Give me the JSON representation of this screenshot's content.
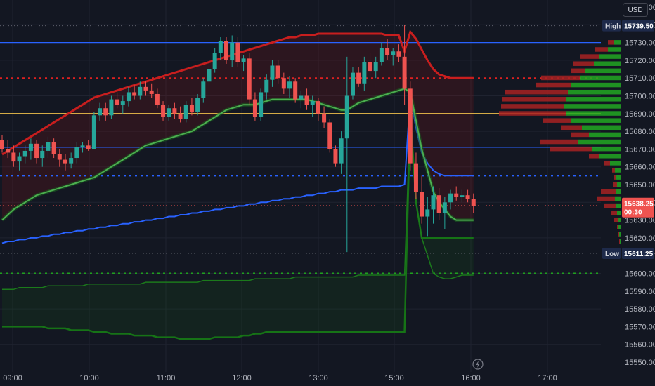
{
  "currency": "USD",
  "price_axis": {
    "ticks": [
      "15750.00",
      "15740.00",
      "15730.00",
      "15720.00",
      "15710.00",
      "15700.00",
      "15690.00",
      "15680.00",
      "15670.00",
      "15660.00",
      "15650.00",
      "15640.00",
      "15630.00",
      "15620.00",
      "15610.00",
      "15600.00",
      "15590.00",
      "15580.00",
      "15570.00",
      "15560.00",
      "15550.00"
    ],
    "high_label": "High",
    "high_value": "15739.50",
    "low_label": "Low",
    "low_value": "15611.25",
    "current_value": "15638.25",
    "countdown": "00:30"
  },
  "time_axis": {
    "ticks": [
      "09:00",
      "10:00",
      "11:00",
      "12:00",
      "13:00",
      "15:00",
      "16:00",
      "17:00"
    ]
  },
  "colors": {
    "background": "#131722",
    "bull": "#26a69a",
    "bear": "#ef5350",
    "upper_band": "#c81e1e",
    "lower_band": "#1b7a1b",
    "vwap": "#2962ff",
    "ma_green": "#4caf50",
    "key_level": "#f0c14b",
    "profile_buy": "#22a822",
    "profile_sell": "#a82222"
  },
  "chart_data": {
    "type": "candlestick",
    "ylim": [
      15545,
      15755
    ],
    "x_ticks": [
      "09:00",
      "10:00",
      "11:00",
      "12:00",
      "13:00",
      "15:00",
      "16:00",
      "17:00"
    ],
    "ohlc": [
      [
        15675,
        15678,
        15668,
        15670
      ],
      [
        15670,
        15675,
        15665,
        15668
      ],
      [
        15668,
        15672,
        15660,
        15663
      ],
      [
        15663,
        15668,
        15658,
        15666
      ],
      [
        15666,
        15672,
        15662,
        15669
      ],
      [
        15669,
        15676,
        15664,
        15673
      ],
      [
        15673,
        15675,
        15662,
        15665
      ],
      [
        15665,
        15672,
        15660,
        15669
      ],
      [
        15669,
        15677,
        15665,
        15674
      ],
      [
        15674,
        15676,
        15665,
        15667
      ],
      [
        15667,
        15670,
        15660,
        15664
      ],
      [
        15664,
        15667,
        15658,
        15662
      ],
      [
        15662,
        15668,
        15659,
        15665
      ],
      [
        15665,
        15674,
        15662,
        15671
      ],
      [
        15671,
        15674,
        15668,
        15672
      ],
      [
        15672,
        15675,
        15669,
        15670
      ],
      [
        15670,
        15691,
        15670,
        15689
      ],
      [
        15689,
        15696,
        15686,
        15693
      ],
      [
        15693,
        15696,
        15686,
        15689
      ],
      [
        15689,
        15700,
        15687,
        15698
      ],
      [
        15698,
        15702,
        15693,
        15695
      ],
      [
        15695,
        15700,
        15690,
        15697
      ],
      [
        15697,
        15705,
        15694,
        15702
      ],
      [
        15702,
        15706,
        15698,
        15700
      ],
      [
        15700,
        15708,
        15698,
        15705
      ],
      [
        15705,
        15708,
        15700,
        15703
      ],
      [
        15703,
        15707,
        15699,
        15701
      ],
      [
        15701,
        15704,
        15693,
        15695
      ],
      [
        15695,
        15697,
        15686,
        15688
      ],
      [
        15688,
        15695,
        15686,
        15693
      ],
      [
        15693,
        15696,
        15687,
        15690
      ],
      [
        15690,
        15694,
        15685,
        15687
      ],
      [
        15687,
        15697,
        15685,
        15695
      ],
      [
        15695,
        15699,
        15689,
        15691
      ],
      [
        15691,
        15701,
        15689,
        15699
      ],
      [
        15699,
        15710,
        15696,
        15708
      ],
      [
        15708,
        15717,
        15705,
        15715
      ],
      [
        15715,
        15727,
        15713,
        15724
      ],
      [
        15724,
        15733,
        15720,
        15731
      ],
      [
        15731,
        15733,
        15718,
        15720
      ],
      [
        15720,
        15734,
        15716,
        15730
      ],
      [
        15730,
        15733,
        15716,
        15719
      ],
      [
        15719,
        15723,
        15714,
        15721
      ],
      [
        15721,
        15724,
        15695,
        15698
      ],
      [
        15698,
        15702,
        15686,
        15688
      ],
      [
        15688,
        15704,
        15686,
        15702
      ],
      [
        15702,
        15712,
        15698,
        15709
      ],
      [
        15709,
        15720,
        15705,
        15717
      ],
      [
        15717,
        15720,
        15707,
        15710
      ],
      [
        15710,
        15713,
        15701,
        15704
      ],
      [
        15704,
        15711,
        15699,
        15708
      ],
      [
        15708,
        15710,
        15696,
        15698
      ],
      [
        15698,
        15703,
        15693,
        15700
      ],
      [
        15700,
        15704,
        15692,
        15695
      ],
      [
        15695,
        15700,
        15688,
        15697
      ],
      [
        15697,
        15699,
        15686,
        15690
      ],
      [
        15690,
        15694,
        15682,
        15685
      ],
      [
        15685,
        15687,
        15668,
        15670
      ],
      [
        15670,
        15672,
        15660,
        15662
      ],
      [
        15662,
        15680,
        15656,
        15676
      ],
      [
        15676,
        15722,
        15612,
        15700
      ],
      [
        15700,
        15716,
        15698,
        15713
      ],
      [
        15713,
        15716,
        15705,
        15707
      ],
      [
        15707,
        15722,
        15703,
        15719
      ],
      [
        15719,
        15724,
        15711,
        15714
      ],
      [
        15714,
        15722,
        15710,
        15719
      ],
      [
        15719,
        15730,
        15717,
        15727
      ],
      [
        15727,
        15732,
        15720,
        15723
      ],
      [
        15723,
        15727,
        15717,
        15725
      ],
      [
        15725,
        15729,
        15719,
        15722
      ],
      [
        15722,
        15740,
        15695,
        15704
      ],
      [
        15704,
        15708,
        15658,
        15662
      ],
      [
        15662,
        15668,
        15642,
        15646
      ],
      [
        15646,
        15655,
        15628,
        15632
      ],
      [
        15632,
        15643,
        15621,
        15636
      ],
      [
        15636,
        15649,
        15628,
        15644
      ],
      [
        15644,
        15648,
        15630,
        15634
      ],
      [
        15634,
        15643,
        15625,
        15640
      ],
      [
        15640,
        15647,
        15636,
        15645
      ],
      [
        15645,
        15649,
        15641,
        15643
      ],
      [
        15643,
        15647,
        15640,
        15644
      ],
      [
        15644,
        15647,
        15640,
        15642
      ],
      [
        15642,
        15645,
        15634,
        15638
      ]
    ],
    "upper_band": [
      15667,
      15669,
      15671,
      15673,
      15675,
      15677,
      15679,
      15681,
      15683,
      15685,
      15687,
      15689,
      15691,
      15693,
      15695,
      15697,
      15699,
      15700,
      15701,
      15702,
      15703,
      15704,
      15705,
      15706,
      15707,
      15708,
      15709,
      15710,
      15711,
      15712,
      15713,
      15714,
      15715,
      15716,
      15717,
      15718,
      15719,
      15720,
      15721,
      15722,
      15723,
      15724,
      15725,
      15726,
      15727,
      15728,
      15729,
      15730,
      15731,
      15732,
      15733,
      15733,
      15734,
      15734,
      15734,
      15735,
      15735,
      15735,
      15735,
      15735,
      15735,
      15735,
      15735,
      15735,
      15735,
      15735,
      15735,
      15734,
      15734,
      15734,
      15725,
      15736,
      15732,
      15726,
      15720,
      15715,
      15712,
      15711,
      15710,
      15710,
      15710,
      15710,
      15710
    ],
    "ma_green": [
      15630,
      15633,
      15636,
      15638,
      15640,
      15642,
      15644,
      15645,
      15646,
      15647,
      15648,
      15649,
      15650,
      15651,
      15652,
      15653,
      15654,
      15656,
      15658,
      15660,
      15662,
      15664,
      15666,
      15668,
      15670,
      15672,
      15673,
      15674,
      15675,
      15676,
      15677,
      15678,
      15679,
      15680,
      15682,
      15684,
      15686,
      15688,
      15690,
      15692,
      15693,
      15694,
      15695,
      15695,
      15695,
      15696,
      15697,
      15698,
      15698,
      15698,
      15698,
      15698,
      15698,
      15698,
      15697,
      15696,
      15695,
      15694,
      15693,
      15692,
      15692,
      15694,
      15696,
      15697,
      15698,
      15699,
      15700,
      15701,
      15702,
      15703,
      15704,
      15702,
      15686,
      15670,
      15658,
      15646,
      15640,
      15636,
      15632,
      15630,
      15630,
      15630,
      15630
    ],
    "vwap": [
      15617,
      15618,
      15618,
      15619,
      15619,
      15620,
      15620,
      15621,
      15621,
      15622,
      15622,
      15623,
      15623,
      15624,
      15624,
      15625,
      15625,
      15626,
      15626,
      15627,
      15627,
      15628,
      15628,
      15629,
      15629,
      15630,
      15630,
      15631,
      15631,
      15632,
      15632,
      15633,
      15633,
      15634,
      15634,
      15635,
      15635,
      15636,
      15636,
      15637,
      15637,
      15638,
      15638,
      15639,
      15639,
      15640,
      15640,
      15641,
      15641,
      15642,
      15642,
      15643,
      15643,
      15644,
      15644,
      15645,
      15645,
      15646,
      15646,
      15647,
      15647,
      15647,
      15648,
      15648,
      15648,
      15648,
      15649,
      15649,
      15649,
      15649,
      15650,
      15700,
      15682,
      15668,
      15662,
      15658,
      15656,
      15655,
      15655,
      15655,
      15655,
      15655,
      15655
    ],
    "lower_band": [
      15591,
      15591,
      15591,
      15592,
      15592,
      15592,
      15592,
      15592,
      15593,
      15593,
      15593,
      15593,
      15593,
      15593,
      15593,
      15594,
      15594,
      15594,
      15594,
      15594,
      15594,
      15594,
      15594,
      15594,
      15594,
      15595,
      15595,
      15595,
      15595,
      15595,
      15595,
      15595,
      15595,
      15595,
      15595,
      15596,
      15596,
      15596,
      15596,
      15596,
      15596,
      15596,
      15596,
      15596,
      15597,
      15597,
      15597,
      15597,
      15597,
      15597,
      15597,
      15598,
      15598,
      15598,
      15598,
      15598,
      15598,
      15598,
      15598,
      15598,
      15598,
      15598,
      15599,
      15599,
      15599,
      15599,
      15599,
      15599,
      15599,
      15599,
      15599,
      15690,
      15640,
      15620,
      15610,
      15600,
      15598,
      15597,
      15597,
      15598,
      15599,
      15599,
      15599
    ],
    "lower_band_outer": [
      15570,
      15570,
      15570,
      15570,
      15570,
      15570,
      15570,
      15570,
      15569,
      15569,
      15569,
      15569,
      15568,
      15568,
      15568,
      15568,
      15567,
      15567,
      15567,
      15566,
      15566,
      15566,
      15566,
      15565,
      15565,
      15565,
      15565,
      15564,
      15564,
      15564,
      15564,
      15563,
      15563,
      15563,
      15563,
      15563,
      15563,
      15564,
      15564,
      15564,
      15564,
      15564,
      15565,
      15565,
      15566,
      15566,
      15567,
      15567,
      15567,
      15567,
      15567,
      15567,
      15567,
      15567,
      15567,
      15567,
      15567,
      15567,
      15567,
      15567,
      15567,
      15567,
      15567,
      15567,
      15567,
      15567,
      15567,
      15567,
      15567,
      15567,
      15567,
      15690,
      15640,
      15620,
      15620,
      15620,
      15620,
      15620,
      15620,
      15620,
      15620,
      15620,
      15620
    ],
    "levels": [
      {
        "price": 15730,
        "style": "solid",
        "color": "#2962ff"
      },
      {
        "price": 15710,
        "style": "dotted",
        "color": "#e02020"
      },
      {
        "price": 15690,
        "style": "solid",
        "color": "#f0c14b"
      },
      {
        "price": 15671,
        "style": "solid",
        "color": "#2962ff"
      },
      {
        "price": 15655,
        "style": "dotted",
        "color": "#2962ff"
      },
      {
        "price": 15600,
        "style": "dotted",
        "color": "#1fa01f"
      }
    ],
    "volume_profile": [
      {
        "price": 15730,
        "buy": 10,
        "sell": 8
      },
      {
        "price": 15726,
        "buy": 18,
        "sell": 18
      },
      {
        "price": 15722,
        "buy": 30,
        "sell": 28
      },
      {
        "price": 15718,
        "buy": 38,
        "sell": 30
      },
      {
        "price": 15714,
        "buy": 50,
        "sell": 20
      },
      {
        "price": 15710,
        "buy": 58,
        "sell": 55
      },
      {
        "price": 15706,
        "buy": 70,
        "sell": 50
      },
      {
        "price": 15702,
        "buy": 75,
        "sell": 90
      },
      {
        "price": 15698,
        "buy": 78,
        "sell": 90
      },
      {
        "price": 15694,
        "buy": 80,
        "sell": 90
      },
      {
        "price": 15690,
        "buy": 78,
        "sell": 95
      },
      {
        "price": 15686,
        "buy": 70,
        "sell": 40
      },
      {
        "price": 15682,
        "buy": 55,
        "sell": 30
      },
      {
        "price": 15678,
        "buy": 45,
        "sell": 25
      },
      {
        "price": 15674,
        "buy": 60,
        "sell": 55
      },
      {
        "price": 15670,
        "buy": 40,
        "sell": 60
      },
      {
        "price": 15666,
        "buy": 30,
        "sell": 15
      },
      {
        "price": 15662,
        "buy": 15,
        "sell": 8
      },
      {
        "price": 15658,
        "buy": 8,
        "sell": 4
      },
      {
        "price": 15654,
        "buy": 6,
        "sell": 3
      },
      {
        "price": 15650,
        "buy": 5,
        "sell": 6
      },
      {
        "price": 15646,
        "buy": 6,
        "sell": 22
      },
      {
        "price": 15642,
        "buy": 8,
        "sell": 25
      },
      {
        "price": 15638,
        "buy": 6,
        "sell": 18
      },
      {
        "price": 15634,
        "buy": 5,
        "sell": 8
      },
      {
        "price": 15630,
        "buy": 4,
        "sell": 5
      },
      {
        "price": 15626,
        "buy": 3,
        "sell": 2
      },
      {
        "price": 15622,
        "buy": 2,
        "sell": 2
      },
      {
        "price": 15618,
        "buy": 1,
        "sell": 1
      }
    ]
  }
}
